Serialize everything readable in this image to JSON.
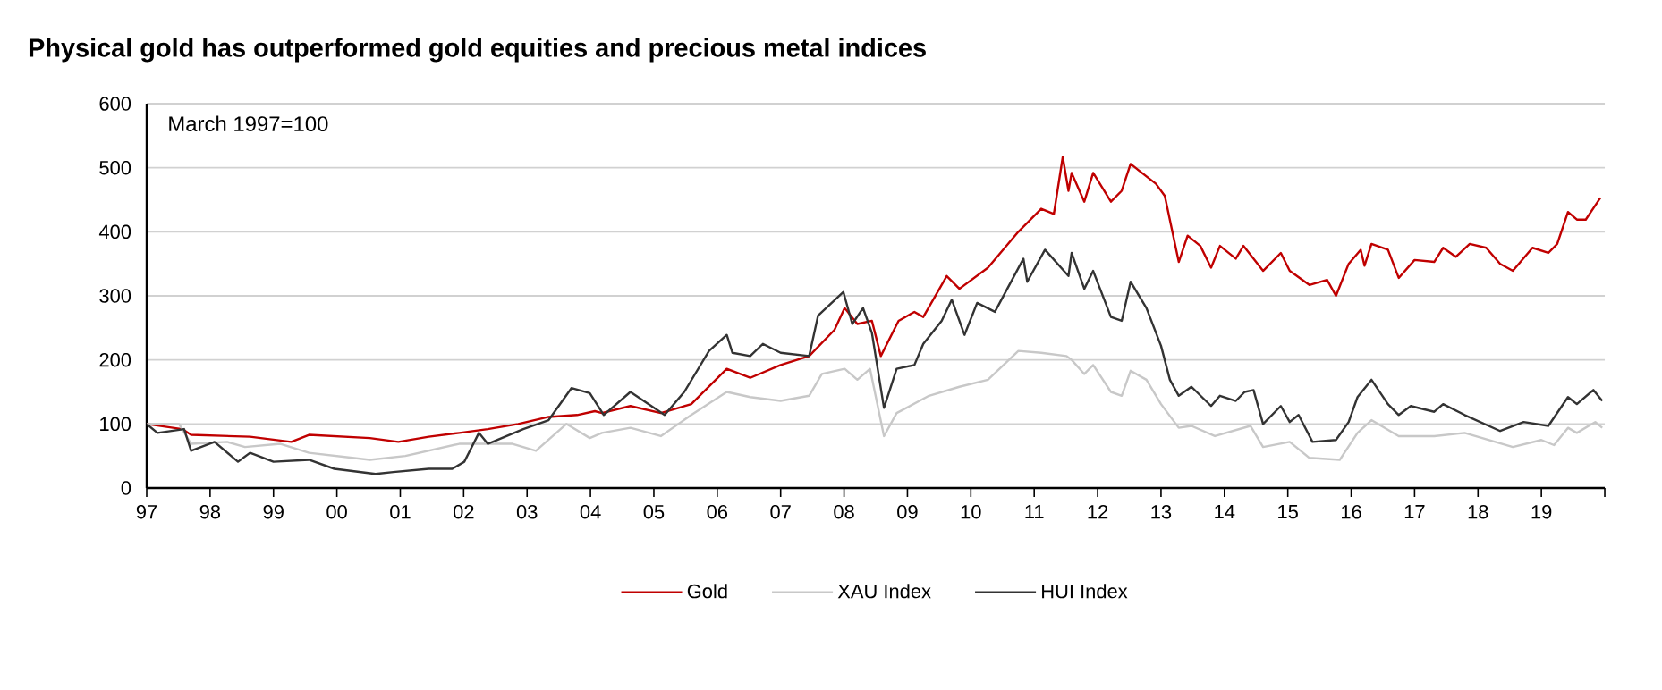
{
  "chart_data": {
    "type": "line",
    "title": "Physical gold has outperformed gold equities and precious metal indices",
    "annotations": [
      "March 1997=100"
    ],
    "xlim": [
      1997,
      2020
    ],
    "ylim": [
      0,
      600
    ],
    "xticks": [
      {
        "value": 1997,
        "label": "97"
      },
      {
        "value": 1998,
        "label": "98"
      },
      {
        "value": 1999,
        "label": "99"
      },
      {
        "value": 2000,
        "label": "00"
      },
      {
        "value": 2001,
        "label": "01"
      },
      {
        "value": 2002,
        "label": "02"
      },
      {
        "value": 2003,
        "label": "03"
      },
      {
        "value": 2004,
        "label": "04"
      },
      {
        "value": 2005,
        "label": "05"
      },
      {
        "value": 2006,
        "label": "06"
      },
      {
        "value": 2007,
        "label": "07"
      },
      {
        "value": 2008,
        "label": "08"
      },
      {
        "value": 2009,
        "label": "09"
      },
      {
        "value": 2010,
        "label": "10"
      },
      {
        "value": 2011,
        "label": "11"
      },
      {
        "value": 2012,
        "label": "12"
      },
      {
        "value": 2013,
        "label": "13"
      },
      {
        "value": 2014,
        "label": "14"
      },
      {
        "value": 2015,
        "label": "15"
      },
      {
        "value": 2016,
        "label": "16"
      },
      {
        "value": 2017,
        "label": "17"
      },
      {
        "value": 2018,
        "label": "18"
      },
      {
        "value": 2019,
        "label": "19"
      },
      {
        "value": 2020,
        "label": null
      }
    ],
    "yticks": [
      0,
      100,
      200,
      300,
      400,
      500,
      600
    ],
    "grid": "y",
    "legend": "bottom",
    "marker": "none",
    "line_style": "solid",
    "series": [
      {
        "name": "Gold",
        "color": "#c00000",
        "x": [
          1997.0,
          1997.56,
          1997.7,
          1998.63,
          1999.28,
          1999.56,
          2000.52,
          2000.97,
          2001.45,
          2001.93,
          2002.38,
          2002.86,
          2003.34,
          2003.79,
          2004.07,
          2004.18,
          2004.63,
          2005.11,
          2005.59,
          2006.15,
          2006.52,
          2007.0,
          2007.45,
          2007.85,
          2008.01,
          2008.21,
          2008.44,
          2008.58,
          2008.86,
          2009.11,
          2009.25,
          2009.62,
          2009.82,
          2010.27,
          2010.75,
          2011.11,
          2011.31,
          2011.45,
          2011.54,
          2011.59,
          2011.79,
          2011.93,
          2012.21,
          2012.38,
          2012.52,
          2012.92,
          2013.06,
          2013.28,
          2013.42,
          2013.62,
          2013.79,
          2013.93,
          2014.18,
          2014.3,
          2014.61,
          2014.89,
          2015.03,
          2015.34,
          2015.62,
          2015.76,
          2015.96,
          2016.15,
          2016.21,
          2016.32,
          2016.58,
          2016.75,
          2017.0,
          2017.31,
          2017.45,
          2017.65,
          2017.87,
          2018.13,
          2018.35,
          2018.55,
          2018.86,
          2019.11,
          2019.25,
          2019.42,
          2019.56,
          2019.7,
          2019.93
        ],
        "values": [
          100,
          92,
          83,
          80,
          72,
          83,
          78,
          72,
          80,
          86,
          92,
          100,
          111,
          114,
          120,
          117,
          128,
          117,
          131,
          186,
          172,
          192,
          206,
          247,
          281,
          256,
          261,
          206,
          261,
          275,
          267,
          331,
          311,
          344,
          400,
          436,
          428,
          517,
          464,
          492,
          447,
          492,
          447,
          464,
          506,
          475,
          456,
          353,
          394,
          378,
          344,
          378,
          358,
          378,
          339,
          367,
          339,
          317,
          325,
          300,
          350,
          372,
          347,
          381,
          372,
          328,
          356,
          353,
          375,
          361,
          381,
          375,
          350,
          339,
          375,
          367,
          381,
          431,
          419,
          419,
          453
        ]
      },
      {
        "name": "XAU Index",
        "color": "#c8c8c8",
        "x": [
          1997.0,
          1997.51,
          1997.7,
          1998.27,
          1998.55,
          1999.11,
          1999.56,
          2000.52,
          2001.08,
          2001.93,
          2002.24,
          2002.77,
          2003.14,
          2003.62,
          2003.99,
          2004.18,
          2004.63,
          2005.11,
          2005.59,
          2006.15,
          2006.52,
          2007.0,
          2007.45,
          2007.65,
          2008.01,
          2008.21,
          2008.41,
          2008.63,
          2008.83,
          2009.34,
          2009.82,
          2010.27,
          2010.75,
          2011.11,
          2011.51,
          2011.59,
          2011.79,
          2011.93,
          2012.21,
          2012.38,
          2012.52,
          2012.77,
          2013.0,
          2013.28,
          2013.48,
          2013.85,
          2014.41,
          2014.61,
          2015.03,
          2015.34,
          2015.82,
          2016.1,
          2016.32,
          2016.75,
          2017.31,
          2017.79,
          2018.55,
          2019.0,
          2019.2,
          2019.42,
          2019.56,
          2019.85,
          2019.96
        ],
        "values": [
          100,
          100,
          69,
          72,
          64,
          69,
          55,
          44,
          50,
          69,
          69,
          69,
          58,
          100,
          78,
          86,
          94,
          81,
          114,
          150,
          142,
          136,
          144,
          178,
          186,
          169,
          186,
          81,
          117,
          144,
          158,
          169,
          214,
          211,
          206,
          200,
          178,
          192,
          150,
          144,
          183,
          169,
          131,
          94,
          97,
          81,
          97,
          64,
          72,
          47,
          44,
          86,
          106,
          81,
          81,
          86,
          64,
          75,
          67,
          94,
          86,
          103,
          94
        ]
      },
      {
        "name": "HUI Index",
        "color": "#333333",
        "x": [
          1997.0,
          1997.17,
          1997.59,
          1997.7,
          1998.07,
          1998.44,
          1998.63,
          1999.0,
          1999.56,
          1999.96,
          2000.61,
          2000.89,
          2001.45,
          2001.82,
          2002.01,
          2002.24,
          2002.38,
          2002.94,
          2003.34,
          2003.7,
          2003.99,
          2004.21,
          2004.63,
          2005.17,
          2005.48,
          2005.87,
          2006.15,
          2006.24,
          2006.52,
          2006.72,
          2007.0,
          2007.45,
          2007.59,
          2007.99,
          2008.13,
          2008.3,
          2008.44,
          2008.63,
          2008.83,
          2009.11,
          2009.25,
          2009.54,
          2009.7,
          2009.9,
          2010.1,
          2010.38,
          2010.83,
          2010.89,
          2011.17,
          2011.54,
          2011.59,
          2011.79,
          2011.93,
          2012.21,
          2012.38,
          2012.52,
          2012.77,
          2013.0,
          2013.14,
          2013.28,
          2013.48,
          2013.79,
          2013.93,
          2014.18,
          2014.32,
          2014.46,
          2014.61,
          2014.89,
          2015.03,
          2015.17,
          2015.39,
          2015.76,
          2015.96,
          2016.1,
          2016.32,
          2016.58,
          2016.75,
          2016.94,
          2017.31,
          2017.45,
          2017.79,
          2018.35,
          2018.72,
          2019.11,
          2019.42,
          2019.56,
          2019.82,
          2019.96
        ],
        "values": [
          100,
          86,
          92,
          58,
          72,
          41,
          55,
          41,
          44,
          30,
          22,
          25,
          30,
          30,
          41,
          86,
          69,
          92,
          106,
          156,
          148,
          114,
          150,
          114,
          150,
          214,
          239,
          211,
          206,
          225,
          211,
          206,
          269,
          306,
          256,
          281,
          242,
          125,
          186,
          192,
          225,
          261,
          294,
          239,
          289,
          275,
          358,
          322,
          372,
          331,
          367,
          311,
          339,
          267,
          261,
          322,
          281,
          222,
          169,
          144,
          158,
          128,
          144,
          136,
          150,
          153,
          100,
          128,
          103,
          114,
          72,
          75,
          103,
          142,
          169,
          131,
          114,
          128,
          119,
          131,
          114,
          89,
          103,
          97,
          142,
          131,
          153,
          136
        ]
      }
    ]
  }
}
